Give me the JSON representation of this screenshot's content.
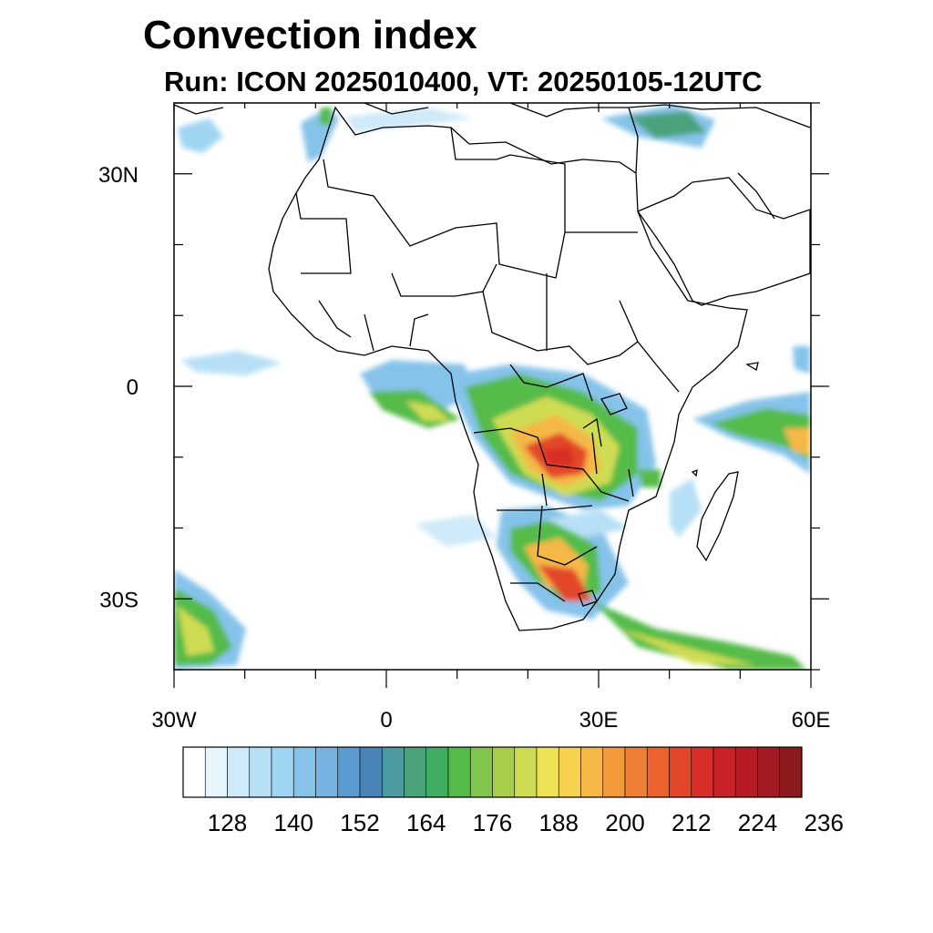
{
  "title": "Convection index",
  "subtitle": "Run: ICON 2025010400,  VT: 20250105-12UTC",
  "map": {
    "projection": "cylindrical equidistant",
    "lon_range": [
      -30,
      60
    ],
    "lat_range": [
      -40,
      40
    ],
    "x_ticks": [
      {
        "lon": -30,
        "label": "30W"
      },
      {
        "lon": 0,
        "label": "0"
      },
      {
        "lon": 30,
        "label": "30E"
      },
      {
        "lon": 60,
        "label": "60E"
      }
    ],
    "y_ticks": [
      {
        "lat": 30,
        "label": "30N"
      },
      {
        "lat": 0,
        "label": "0"
      },
      {
        "lat": -30,
        "label": "30S"
      }
    ],
    "minor_lon_step": 10,
    "minor_lat_step": 10
  },
  "colorbar": {
    "labels": [
      "128",
      "140",
      "152",
      "164",
      "176",
      "188",
      "200",
      "212",
      "224",
      "236"
    ],
    "colors": [
      "#ffffff",
      "#e6f4fb",
      "#cfeaf8",
      "#b7e0f6",
      "#9fd5f3",
      "#86c3ea",
      "#76b3e0",
      "#5a9bd1",
      "#4a83b7",
      "#4c9aa2",
      "#4aa27b",
      "#3fae62",
      "#55bb48",
      "#82c54c",
      "#a8cd4a",
      "#cedc53",
      "#efe355",
      "#f6d24f",
      "#f5b846",
      "#f39b3c",
      "#ef7e35",
      "#eb622e",
      "#e3472a",
      "#d92d27",
      "#c92226",
      "#b71c25",
      "#a21a22",
      "#8b1a1d"
    ]
  }
}
